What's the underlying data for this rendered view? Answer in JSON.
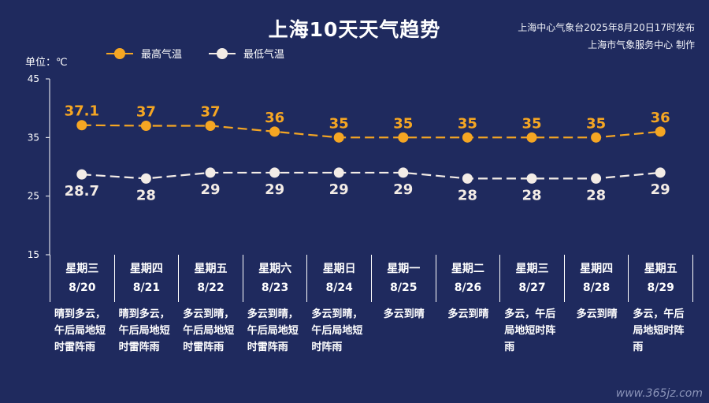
{
  "title": "上海10天天气趋势",
  "publisher": {
    "line1": "上海中心气象台2025年8月20日17时发布",
    "line2": "上海市气象服务中心 制作"
  },
  "unit_label": "单位：℃",
  "legend": {
    "high": "最高气温",
    "low": "最低气温"
  },
  "colors": {
    "background": "#1f2a5e",
    "high": "#f5a623",
    "low": "#f3ece6"
  },
  "chart_data": {
    "type": "line",
    "ylim": [
      15,
      45
    ],
    "yticks": [
      "15",
      "25",
      "35",
      "45"
    ],
    "categories": [
      "8/20",
      "8/21",
      "8/22",
      "8/23",
      "8/24",
      "8/25",
      "8/26",
      "8/27",
      "8/28",
      "8/29"
    ],
    "series": [
      {
        "name": "最高气温",
        "values": [
          37.1,
          37,
          37,
          36,
          35,
          35,
          35,
          35,
          35,
          36
        ],
        "labels": [
          "37.1",
          "37",
          "37",
          "36",
          "35",
          "35",
          "35",
          "35",
          "35",
          "36"
        ]
      },
      {
        "name": "最低气温",
        "values": [
          28.7,
          28,
          29,
          29,
          29,
          29,
          28,
          28,
          28,
          29
        ],
        "labels": [
          "28.7",
          "28",
          "29",
          "29",
          "29",
          "29",
          "28",
          "28",
          "28",
          "29"
        ]
      }
    ]
  },
  "days": [
    {
      "weekday": "星期三",
      "date": "8/20",
      "desc": "晴到多云，午后局地短时雷阵雨"
    },
    {
      "weekday": "星期四",
      "date": "8/21",
      "desc": "晴到多云，午后局地短时雷阵雨"
    },
    {
      "weekday": "星期五",
      "date": "8/22",
      "desc": "多云到晴，午后局地短时雷阵雨"
    },
    {
      "weekday": "星期六",
      "date": "8/23",
      "desc": "多云到晴，午后局地短时雷阵雨"
    },
    {
      "weekday": "星期日",
      "date": "8/24",
      "desc": "多云到晴，午后局地短时阵雨"
    },
    {
      "weekday": "星期一",
      "date": "8/25",
      "desc": "多云到晴"
    },
    {
      "weekday": "星期二",
      "date": "8/26",
      "desc": "多云到晴"
    },
    {
      "weekday": "星期三",
      "date": "8/27",
      "desc": "多云，午后局地短时阵雨"
    },
    {
      "weekday": "星期四",
      "date": "8/28",
      "desc": "多云到晴"
    },
    {
      "weekday": "星期五",
      "date": "8/29",
      "desc": "多云，午后局地短时阵雨"
    }
  ],
  "watermark": "www.365jz.com"
}
